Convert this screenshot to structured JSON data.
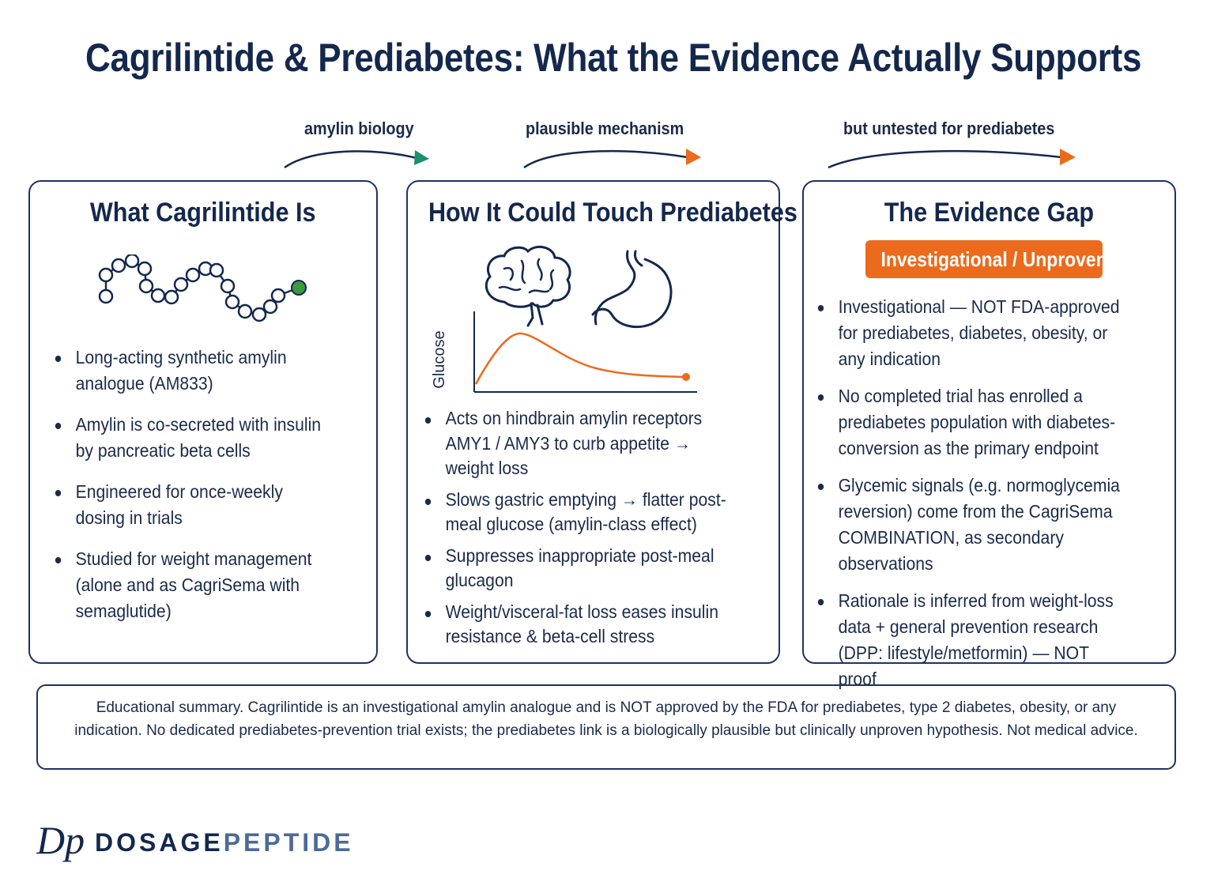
{
  "title": "Cagrilintide & Prediabetes: What the Evidence Actually Supports",
  "flow": [
    {
      "label": "amylin biology",
      "color": "#1a9070"
    },
    {
      "label": "plausible mechanism",
      "color": "#ec6a1c"
    },
    {
      "label": "but untested for prediabetes",
      "color": "#ec6a1c"
    }
  ],
  "panels": {
    "what": {
      "title": "What Cagrilintide Is",
      "icon": "peptide-chain-icon",
      "bullets": [
        "Long-acting synthetic amylin analogue (AM833)",
        "Amylin is co-secreted with insulin by pancreatic beta cells",
        "Engineered for once-weekly dosing in trials",
        "Studied for weight management (alone and as CagriSema with semaglutide)"
      ]
    },
    "how": {
      "title": "How It Could Touch Prediabetes",
      "icons": [
        "brain-icon",
        "stomach-icon"
      ],
      "glucose_axis_label": "Glucose",
      "bullets": [
        "Acts on hindbrain amylin receptors AMY1 / AMY3 to curb appetite → weight loss",
        "Slows gastric emptying → flatter post-meal glucose (amylin-class effect)",
        "Suppresses inappropriate post-meal glucagon",
        "Weight/visceral-fat loss eases insulin resistance & beta-cell stress"
      ]
    },
    "gap": {
      "title": "The Evidence Gap",
      "badge": "Investigational / Unproven",
      "bullets": [
        "Investigational — NOT FDA-approved for prediabetes, diabetes, obesity, or any indication",
        "No completed trial has enrolled a prediabetes population with diabetes-conversion as the primary endpoint",
        "Glycemic signals (e.g. normoglycemia reversion) come from the CagriSema COMBINATION, as secondary observations",
        "Rationale is inferred from weight-loss data + general prevention research (DPP: lifestyle/metformin) — NOT proof"
      ]
    }
  },
  "footer": "Educational summary. Cagrilintide is an investigational amylin analogue and is NOT approved by the FDA for prediabetes, type 2 diabetes, obesity, or any indication. No dedicated prediabetes-prevention trial exists; the prediabetes link is a biologically plausible but clinically unproven hypothesis. Not medical advice.",
  "brand": {
    "part1": "DOSAGE",
    "part2": "PEPTIDE",
    "mark": "Dp"
  },
  "colors": {
    "navy": "#14284d",
    "orange": "#ec6a1c",
    "green": "#3a9a3f",
    "teal": "#1a9070"
  }
}
